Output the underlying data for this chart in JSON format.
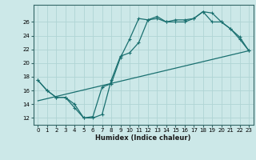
{
  "background_color": "#cce8e8",
  "grid_color": "#b0d4d4",
  "line_color": "#1a7070",
  "xlabel": "Humidex (Indice chaleur)",
  "xlim": [
    -0.5,
    23.5
  ],
  "ylim": [
    11.0,
    28.5
  ],
  "xticks": [
    0,
    1,
    2,
    3,
    4,
    5,
    6,
    7,
    8,
    9,
    10,
    11,
    12,
    13,
    14,
    15,
    16,
    17,
    18,
    19,
    20,
    21,
    22,
    23
  ],
  "yticks": [
    12,
    14,
    16,
    18,
    20,
    22,
    24,
    26
  ],
  "line1_x": [
    0,
    1,
    2,
    3,
    4,
    5,
    6,
    7,
    8,
    9,
    10,
    11,
    12,
    13,
    14,
    15,
    16,
    17,
    18,
    19,
    20,
    21,
    22,
    23
  ],
  "line1_y": [
    17.5,
    16.0,
    15.0,
    15.0,
    14.0,
    12.0,
    12.0,
    12.5,
    17.5,
    21.0,
    21.5,
    23.0,
    26.3,
    26.8,
    26.0,
    26.3,
    26.3,
    26.5,
    27.5,
    27.3,
    26.0,
    25.0,
    23.5,
    21.8
  ],
  "line2_x": [
    0,
    1,
    2,
    3,
    4,
    5,
    6,
    7,
    8,
    9,
    10,
    11,
    12,
    13,
    14,
    15,
    16,
    17,
    18,
    19,
    20,
    21,
    22,
    23
  ],
  "line2_y": [
    17.5,
    16.0,
    15.0,
    15.0,
    13.5,
    12.0,
    12.2,
    16.5,
    17.0,
    20.8,
    23.5,
    26.5,
    26.3,
    26.5,
    26.0,
    26.0,
    26.0,
    26.5,
    27.5,
    26.0,
    26.0,
    25.0,
    23.8,
    21.8
  ],
  "line3_x": [
    0,
    23
  ],
  "line3_y": [
    14.5,
    21.8
  ]
}
